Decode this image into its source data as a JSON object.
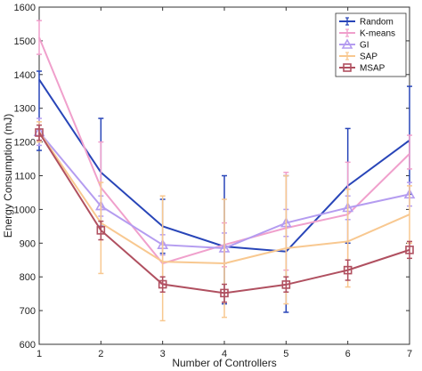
{
  "chart_data": {
    "type": "line",
    "xlabel": "Number of Controllers",
    "ylabel": "Energy Consumption (mJ)",
    "x": [
      1,
      2,
      3,
      4,
      5,
      6,
      7
    ],
    "xlim": [
      1,
      7
    ],
    "ylim": [
      600,
      1600
    ],
    "xticks": [
      "1",
      "2",
      "3",
      "4",
      "5",
      "6",
      "7"
    ],
    "yticks": [
      "600",
      "700",
      "800",
      "900",
      "1000",
      "1100",
      "1200",
      "1300",
      "1400",
      "1500",
      "1600"
    ],
    "grid": false,
    "legend_position": "top-right",
    "series": [
      {
        "name": "Random",
        "color": "#2845b8",
        "marker": "none",
        "values": [
          1385,
          1110,
          950,
          890,
          875,
          1070,
          1205
        ],
        "err_low": [
          1175,
          950,
          870,
          720,
          695,
          900,
          1045
        ],
        "err_high": [
          1410,
          1270,
          1030,
          1100,
          1100,
          1240,
          1365
        ]
      },
      {
        "name": "K-means",
        "color": "#f0a0cc",
        "marker": "none",
        "values": [
          1510,
          1065,
          840,
          895,
          945,
          985,
          1165
        ],
        "err_low": [
          1460,
          1000,
          780,
          830,
          820,
          830,
          1120
        ],
        "err_high": [
          1560,
          1200,
          900,
          960,
          1110,
          1140,
          1220
        ]
      },
      {
        "name": "GI",
        "color": "#b49cf0",
        "marker": "triangle",
        "values": [
          1230,
          1010,
          895,
          885,
          960,
          1005,
          1045
        ],
        "err_low": [
          1190,
          980,
          865,
          840,
          920,
          970,
          1010
        ],
        "err_high": [
          1270,
          1040,
          925,
          930,
          1000,
          1040,
          1080
        ]
      },
      {
        "name": "SAP",
        "color": "#f8c890",
        "marker": "none",
        "values": [
          1230,
          960,
          845,
          840,
          885,
          905,
          985
        ],
        "err_low": [
          1200,
          810,
          670,
          680,
          720,
          770,
          900
        ],
        "err_high": [
          1260,
          1080,
          1040,
          1030,
          1100,
          1060,
          1070
        ]
      },
      {
        "name": "MSAP",
        "color": "#b05060",
        "marker": "square",
        "values": [
          1228,
          938,
          778,
          752,
          777,
          820,
          880
        ],
        "err_low": [
          1205,
          910,
          755,
          725,
          755,
          790,
          855
        ],
        "err_high": [
          1250,
          965,
          800,
          778,
          800,
          850,
          905
        ]
      }
    ]
  }
}
